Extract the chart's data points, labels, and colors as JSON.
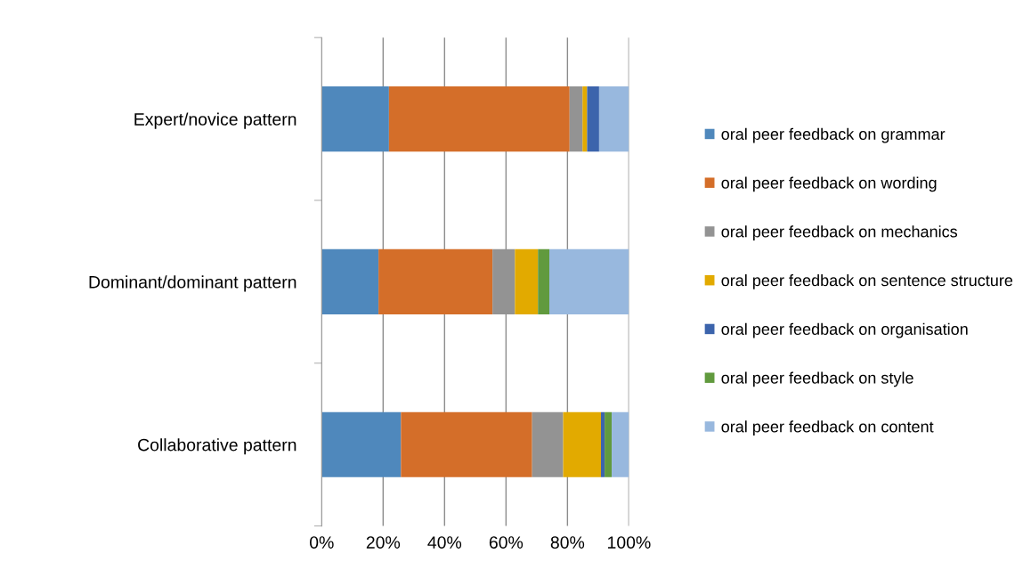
{
  "chart_data": {
    "type": "bar",
    "orientation": "horizontal",
    "stacked": true,
    "categories": [
      "Expert/novice pattern",
      "Dominant/dominant pattern",
      "Collaborative pattern"
    ],
    "series": [
      {
        "name": "oral peer feedback on grammar",
        "color": "#4f88bc",
        "values": [
          21.9,
          18.5,
          25.8
        ]
      },
      {
        "name": "oral peer feedback on wording",
        "color": "#d46e29",
        "values": [
          58.8,
          37.1,
          42.7
        ]
      },
      {
        "name": "oral peer feedback on mechanics",
        "color": "#939393",
        "values": [
          4.2,
          7.3,
          10.1
        ]
      },
      {
        "name": "oral peer feedback on sentence structure",
        "color": "#e2aa00",
        "values": [
          1.5,
          7.5,
          12.3
        ]
      },
      {
        "name": "oral peer feedback on organisation",
        "color": "#3c64ac",
        "values": [
          3.9,
          0,
          1.2
        ]
      },
      {
        "name": "oral peer feedback on style",
        "color": "#619a3e",
        "values": [
          0,
          3.7,
          2.3
        ]
      },
      {
        "name": "oral peer feedback on content",
        "color": "#98b8de",
        "values": [
          9.7,
          25.9,
          5.6
        ]
      }
    ],
    "xlim": [
      0,
      100
    ],
    "xticks": [
      {
        "value": 0,
        "label": "0%"
      },
      {
        "value": 20,
        "label": "20%"
      },
      {
        "value": 40,
        "label": "40%"
      },
      {
        "value": 60,
        "label": "60%"
      },
      {
        "value": 80,
        "label": "80%"
      },
      {
        "value": 100,
        "label": "100%"
      }
    ],
    "grid": "x",
    "legend": "right"
  }
}
